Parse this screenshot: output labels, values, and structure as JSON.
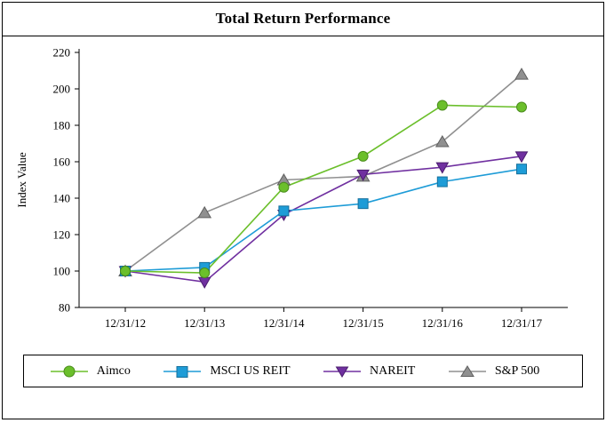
{
  "chart_data": {
    "type": "line",
    "title": "Total Return Performance",
    "ylabel": "Index Value",
    "ylim": [
      80,
      220
    ],
    "ytick_step": 20,
    "categories": [
      "12/31/12",
      "12/31/13",
      "12/31/14",
      "12/31/15",
      "12/31/16",
      "12/31/17"
    ],
    "series": [
      {
        "name": "Aimco",
        "marker": "circle",
        "color": "#6bbf2b",
        "edge": "#4a8c1c",
        "values": [
          100,
          99,
          146,
          163,
          191,
          190
        ]
      },
      {
        "name": "MSCI US REIT",
        "marker": "square",
        "color": "#1e9cd7",
        "edge": "#156f9b",
        "values": [
          100,
          102,
          133,
          137,
          149,
          156
        ]
      },
      {
        "name": "NAREIT",
        "marker": "triangle-down",
        "color": "#7030a0",
        "edge": "#4b1e6e",
        "values": [
          100,
          94,
          131,
          153,
          157,
          163
        ]
      },
      {
        "name": "S&P 500",
        "marker": "triangle-up",
        "color": "#909090",
        "edge": "#5f5f5f",
        "values": [
          100,
          132,
          150,
          152,
          171,
          208
        ]
      }
    ],
    "legend_position": "bottom",
    "grid": false
  }
}
